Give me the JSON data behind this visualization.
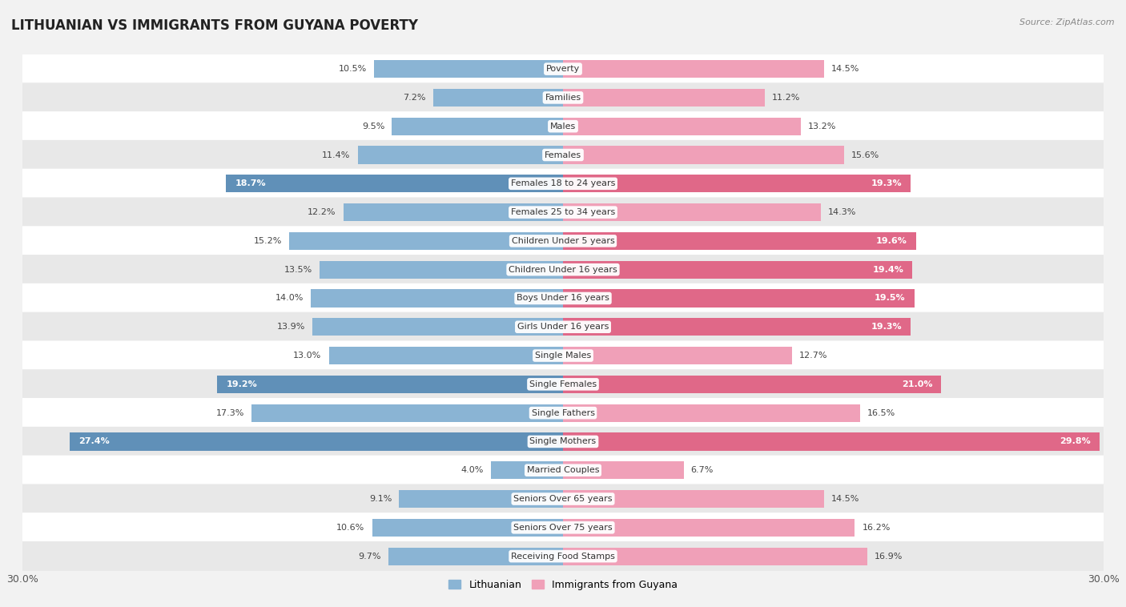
{
  "title": "LITHUANIAN VS IMMIGRANTS FROM GUYANA POVERTY",
  "source": "Source: ZipAtlas.com",
  "categories": [
    "Poverty",
    "Families",
    "Males",
    "Females",
    "Females 18 to 24 years",
    "Females 25 to 34 years",
    "Children Under 5 years",
    "Children Under 16 years",
    "Boys Under 16 years",
    "Girls Under 16 years",
    "Single Males",
    "Single Females",
    "Single Fathers",
    "Single Mothers",
    "Married Couples",
    "Seniors Over 65 years",
    "Seniors Over 75 years",
    "Receiving Food Stamps"
  ],
  "lithuanian": [
    10.5,
    7.2,
    9.5,
    11.4,
    18.7,
    12.2,
    15.2,
    13.5,
    14.0,
    13.9,
    13.0,
    19.2,
    17.3,
    27.4,
    4.0,
    9.1,
    10.6,
    9.7
  ],
  "guyana": [
    14.5,
    11.2,
    13.2,
    15.6,
    19.3,
    14.3,
    19.6,
    19.4,
    19.5,
    19.3,
    12.7,
    21.0,
    16.5,
    29.8,
    6.7,
    14.5,
    16.2,
    16.9
  ],
  "lithuanian_color": "#8ab4d4",
  "guyana_color": "#f0a0b8",
  "highlight_lithuanian": [
    4,
    11,
    13
  ],
  "highlight_guyana": [
    4,
    6,
    7,
    8,
    9,
    11,
    13
  ],
  "highlight_color_lithuanian": "#6090b8",
  "highlight_color_guyana": "#e06888",
  "xmax": 30.0,
  "background_color": "#f2f2f2",
  "row_color_light": "#ffffff",
  "row_color_dark": "#e8e8e8",
  "legend_labels": [
    "Lithuanian",
    "Immigrants from Guyana"
  ],
  "title_fontsize": 12,
  "label_fontsize": 8,
  "value_fontsize": 8
}
